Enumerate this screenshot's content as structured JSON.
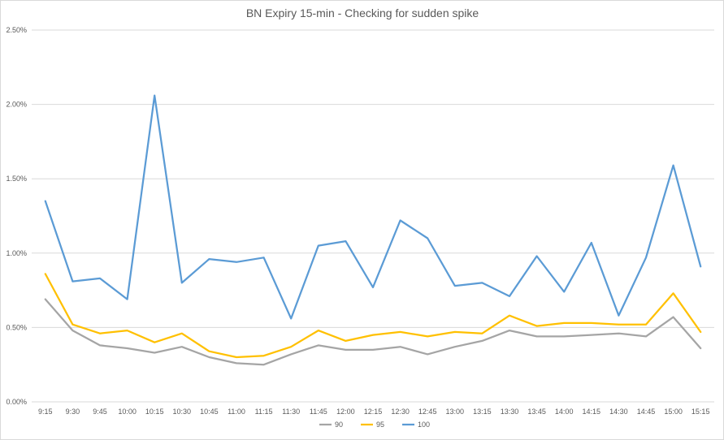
{
  "chart_data": {
    "type": "line",
    "title": "BN Expiry 15-min - Checking for sudden spike",
    "xlabel": "",
    "ylabel": "",
    "categories": [
      "9:15",
      "9:30",
      "9:45",
      "10:00",
      "10:15",
      "10:30",
      "10:45",
      "11:00",
      "11:15",
      "11:30",
      "11:45",
      "12:00",
      "12:15",
      "12:30",
      "12:45",
      "13:00",
      "13:15",
      "13:30",
      "13:45",
      "14:00",
      "14:15",
      "14:30",
      "14:45",
      "15:00",
      "15:15"
    ],
    "ylim": [
      0,
      2.5
    ],
    "yticks": [
      0,
      0.5,
      1.0,
      1.5,
      2.0,
      2.5
    ],
    "ytick_labels": [
      "0.00%",
      "0.50%",
      "1.00%",
      "1.50%",
      "2.00%",
      "2.50%"
    ],
    "grid": true,
    "legend_position": "bottom",
    "series": [
      {
        "name": "90",
        "color": "#a5a5a5",
        "values": [
          0.69,
          0.48,
          0.38,
          0.36,
          0.33,
          0.37,
          0.3,
          0.26,
          0.25,
          0.32,
          0.38,
          0.35,
          0.35,
          0.37,
          0.32,
          0.37,
          0.41,
          0.48,
          0.44,
          0.44,
          0.45,
          0.46,
          0.44,
          0.57,
          0.36
        ]
      },
      {
        "name": "95",
        "color": "#ffc000",
        "values": [
          0.86,
          0.52,
          0.46,
          0.48,
          0.4,
          0.46,
          0.34,
          0.3,
          0.31,
          0.37,
          0.48,
          0.41,
          0.45,
          0.47,
          0.44,
          0.47,
          0.46,
          0.58,
          0.51,
          0.53,
          0.53,
          0.52,
          0.52,
          0.73,
          0.47
        ]
      },
      {
        "name": "100",
        "color": "#5b9bd5",
        "values": [
          1.35,
          0.81,
          0.83,
          0.69,
          2.06,
          0.8,
          0.96,
          0.94,
          0.97,
          0.56,
          1.05,
          1.08,
          0.77,
          1.22,
          1.1,
          0.78,
          0.8,
          0.71,
          0.98,
          0.74,
          1.07,
          0.58,
          0.97,
          1.59,
          0.91
        ]
      }
    ]
  }
}
